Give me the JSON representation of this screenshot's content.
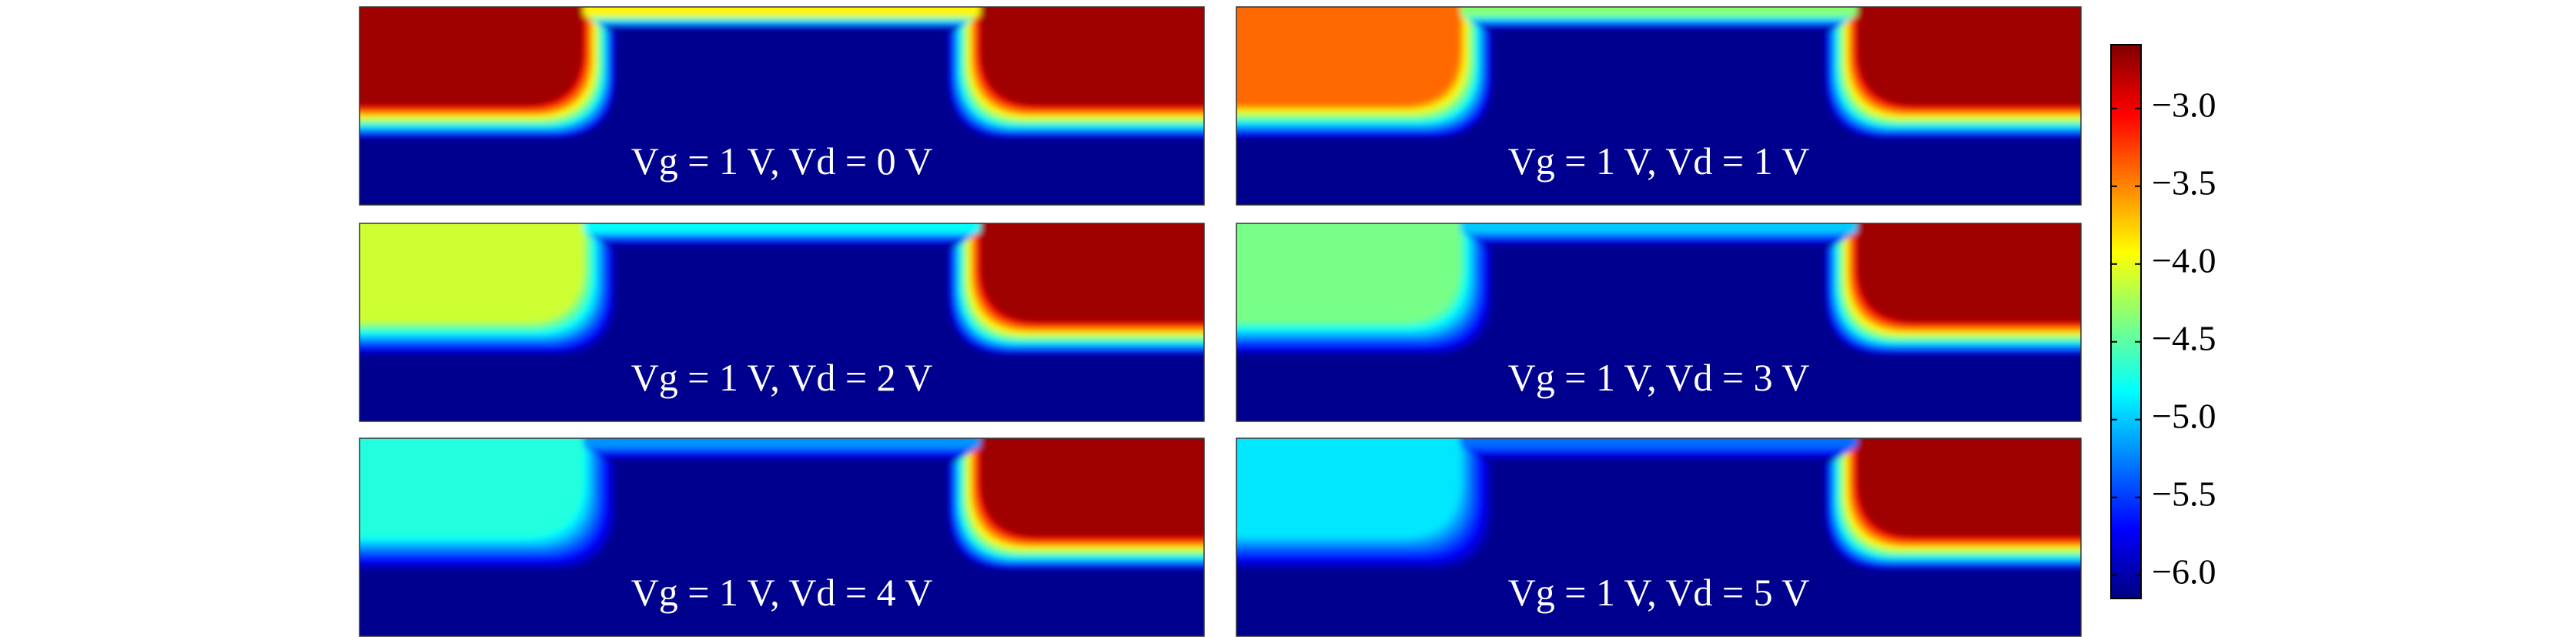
{
  "chart_data": [
    {
      "type": "heatmap",
      "label": "Vg = 1 V, Vd = 0 V",
      "values": [
        -2.7,
        -6.1,
        -2.7
      ]
    },
    {
      "type": "heatmap",
      "label": "Vg = 1 V, Vd = 1 V",
      "values": [
        -3.4,
        -6.1,
        -2.7
      ]
    },
    {
      "type": "heatmap",
      "label": "Vg = 1 V, Vd = 2 V",
      "values": [
        -4.1,
        -6.1,
        -2.7
      ]
    },
    {
      "type": "heatmap",
      "label": "Vg = 1 V, Vd = 3 V",
      "values": [
        -4.4,
        -6.1,
        -2.7
      ]
    },
    {
      "type": "heatmap",
      "label": "Vg = 1 V, Vd = 4 V",
      "values": [
        -4.7,
        -6.1,
        -2.7
      ]
    },
    {
      "type": "heatmap",
      "label": "Vg = 1 V, Vd = 5 V",
      "values": [
        -4.9,
        -6.1,
        -2.7
      ]
    },
    {
      "type": "colorbar",
      "colormap": "jet",
      "ylim": [
        -6.15,
        -2.59
      ],
      "yticks": [
        {
          "value": -6.0,
          "label": "−6.0"
        },
        {
          "value": -5.5,
          "label": "−5.5"
        },
        {
          "value": -5.0,
          "label": "−5.0"
        },
        {
          "value": -4.5,
          "label": "−4.5"
        },
        {
          "value": -4.0,
          "label": "−4.0"
        },
        {
          "value": -3.5,
          "label": "−3.5"
        },
        {
          "value": -3.0,
          "label": "−3.0"
        }
      ]
    }
  ]
}
